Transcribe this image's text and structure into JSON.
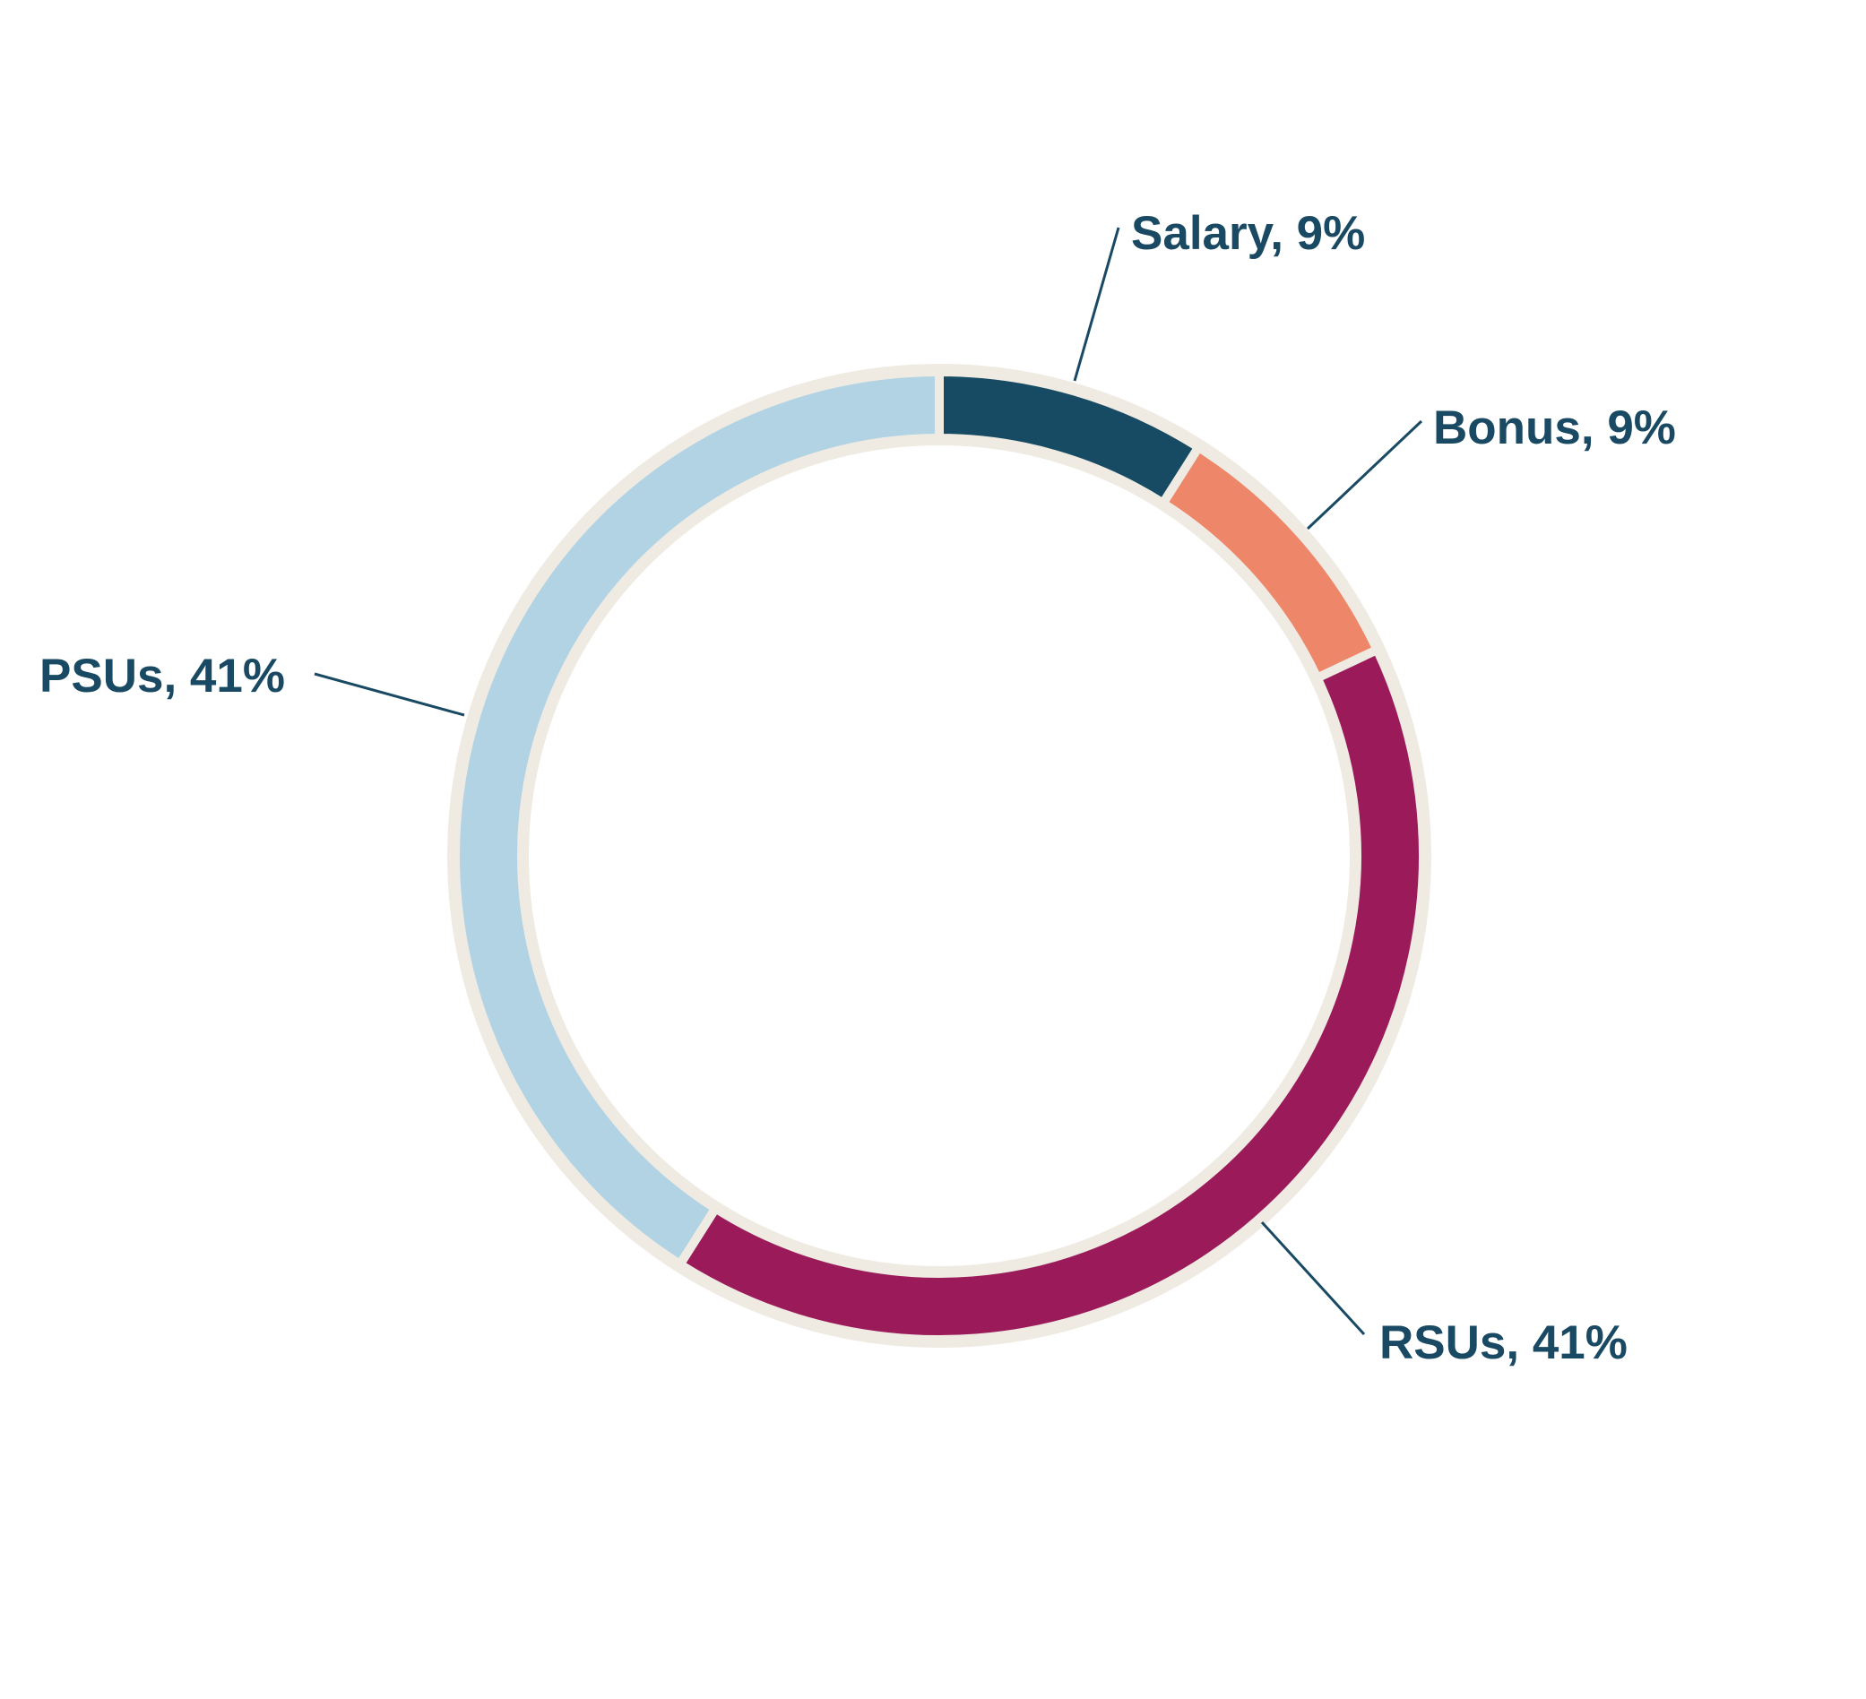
{
  "chart_data": {
    "type": "donut",
    "value_labels": [
      "Salary, 9%",
      "Bonus, 9%",
      "RSUs, 41%",
      "PSUs, 41%"
    ],
    "values": [
      9,
      9,
      41,
      41
    ],
    "colors": [
      "#174b63",
      "#ee866a",
      "#9b1a59",
      "#b1d3e4"
    ]
  }
}
